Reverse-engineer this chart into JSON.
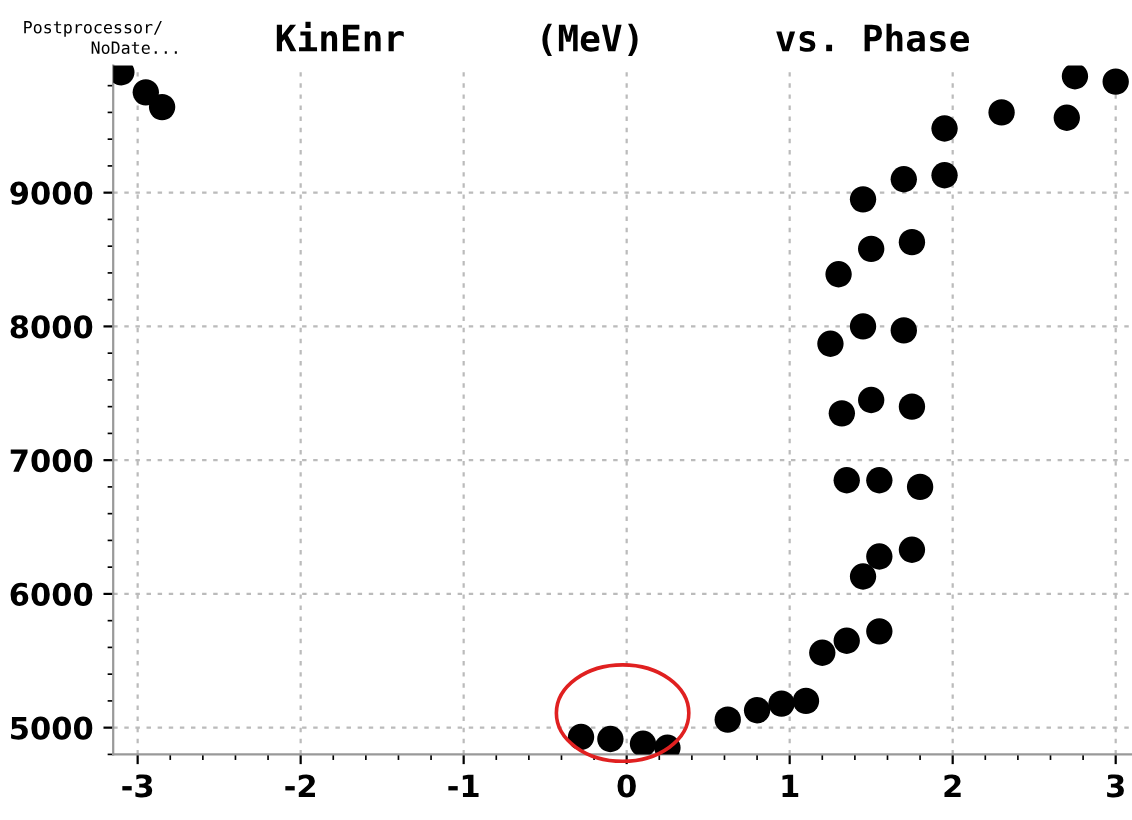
{
  "chart_data": {
    "type": "scatter",
    "title": "KinEnr      (MeV)      vs. Phase",
    "annotations": [
      "Postprocessor/",
      "NoDate..."
    ],
    "x": [
      -0.28,
      -0.1,
      0.1,
      0.25,
      0.62,
      0.8,
      0.95,
      1.1,
      1.2,
      1.35,
      1.55,
      1.45,
      1.55,
      1.75,
      1.35,
      1.55,
      1.8,
      1.32,
      1.5,
      1.75,
      1.25,
      1.45,
      1.7,
      1.3,
      1.5,
      1.75,
      1.45,
      1.7,
      1.95,
      1.95,
      2.3,
      2.7,
      2.75,
      3.0,
      -3.1,
      -2.95,
      -2.85
    ],
    "series": [
      {
        "color": "#000000",
        "values": [
          4930,
          4915,
          4880,
          4850,
          5060,
          5130,
          5180,
          5200,
          5560,
          5650,
          5720,
          6130,
          6280,
          6330,
          6850,
          6850,
          6800,
          7350,
          7450,
          7400,
          7870,
          8000,
          7970,
          8390,
          8580,
          8630,
          8950,
          9100,
          9130,
          9480,
          9600,
          9560,
          9870,
          9830,
          9900,
          9750,
          9640
        ]
      }
    ],
    "xlim": [
      -3.15,
      3.1
    ],
    "ylim": [
      4800,
      9950
    ],
    "xticks": [
      -3,
      -2,
      -1,
      0,
      1,
      2,
      3
    ],
    "yticks": [
      5000,
      6000,
      7000,
      8000,
      9000
    ],
    "grid": true,
    "marker": "circle",
    "legend": false
  }
}
